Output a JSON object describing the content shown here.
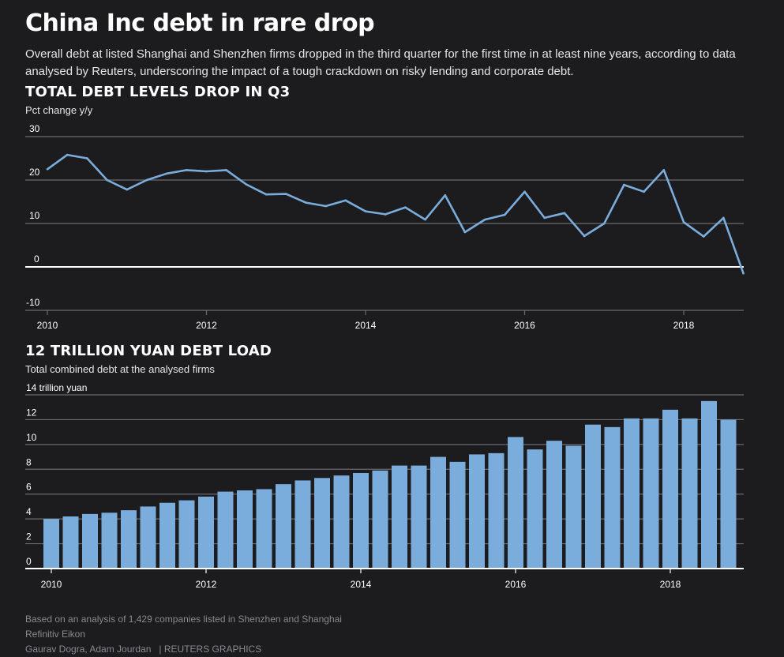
{
  "headline": "China Inc debt in rare drop",
  "intro": "Overall debt at listed Shanghai and Shenzhen firms dropped in the third quarter for the first time in at least nine years, according to data analysed by Reuters, underscoring the impact of a tough crackdown on risky lending and corporate debt.",
  "colors": {
    "background": "#1c1b1e",
    "series": "#7aaddb",
    "grid": "#6b6b6e",
    "zero_line": "#ffffff",
    "footer_text": "#8a8a8e"
  },
  "chart_data": [
    {
      "type": "line",
      "title": "TOTAL DEBT LEVELS DROP IN Q3",
      "subtitle": "Pct change y/y",
      "x_start": 2010.0,
      "x_step": 0.25,
      "x_range": [
        2010.0,
        2018.75
      ],
      "ylim": [
        -10,
        30
      ],
      "yticks": [
        {
          "value": 30,
          "label": "30"
        },
        {
          "value": 20,
          "label": "20"
        },
        {
          "value": 10,
          "label": "10"
        },
        {
          "value": 0,
          "label": "0"
        },
        {
          "value": -10,
          "label": "-10"
        }
      ],
      "xticks": [
        {
          "value": 2010,
          "label": "2010"
        },
        {
          "value": 2012,
          "label": "2012"
        },
        {
          "value": 2014,
          "label": "2014"
        },
        {
          "value": 2016,
          "label": "2016"
        },
        {
          "value": 2018,
          "label": "2018"
        }
      ],
      "values": [
        22.5,
        25.8,
        25.0,
        20.0,
        17.8,
        20.0,
        21.5,
        22.3,
        22.0,
        22.3,
        19.0,
        16.7,
        16.8,
        14.8,
        14.0,
        15.3,
        12.8,
        12.1,
        13.7,
        10.9,
        16.5,
        8.0,
        10.9,
        12.0,
        17.3,
        11.3,
        12.4,
        7.1,
        10.0,
        18.9,
        17.3,
        22.3,
        10.3,
        7.0,
        11.3,
        -1.5
      ]
    },
    {
      "type": "bar",
      "title": "12 TRILLION YUAN DEBT LOAD",
      "subtitle": "Total combined debt at the analysed firms",
      "x_start": 2010.0,
      "x_step": 0.25,
      "ylim": [
        0,
        14
      ],
      "yticks": [
        {
          "value": 14,
          "label": "14 trillion yuan"
        },
        {
          "value": 12,
          "label": "12"
        },
        {
          "value": 10,
          "label": "10"
        },
        {
          "value": 8,
          "label": "8"
        },
        {
          "value": 6,
          "label": "6"
        },
        {
          "value": 4,
          "label": "4"
        },
        {
          "value": 2,
          "label": "2"
        },
        {
          "value": 0,
          "label": "0"
        }
      ],
      "xticks": [
        {
          "value": 2010,
          "label": "2010"
        },
        {
          "value": 2012,
          "label": "2012"
        },
        {
          "value": 2014,
          "label": "2014"
        },
        {
          "value": 2016,
          "label": "2016"
        },
        {
          "value": 2018,
          "label": "2018"
        }
      ],
      "values": [
        4.0,
        4.2,
        4.4,
        4.5,
        4.7,
        5.0,
        5.3,
        5.5,
        5.8,
        6.2,
        6.3,
        6.4,
        6.8,
        7.1,
        7.3,
        7.5,
        7.7,
        7.9,
        8.3,
        8.3,
        9.0,
        8.6,
        9.2,
        9.3,
        10.6,
        9.6,
        10.3,
        9.9,
        11.6,
        11.4,
        12.1,
        12.1,
        12.8,
        12.1,
        13.5,
        12.0
      ]
    }
  ],
  "footer": {
    "note": "Based on an analysis of 1,429 companies listed in Shenzhen and Shanghai",
    "source": "Refinitiv Eikon",
    "authors": "Gaurav Dogra, Adam Jourdan",
    "credit": "| REUTERS GRAPHICS"
  }
}
